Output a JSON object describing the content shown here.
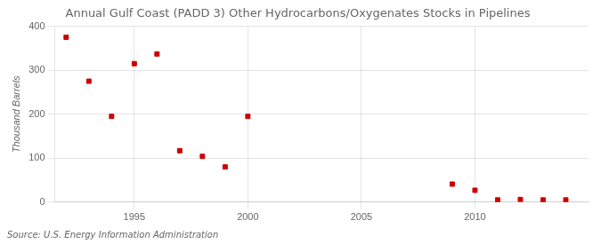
{
  "chart_data": {
    "type": "scatter",
    "title": "Annual Gulf Coast (PADD 3) Other Hydrocarbons/Oxygenates Stocks in Pipelines",
    "ylabel": "Thousand Barrels",
    "annotation": "Source: U.S. Energy Information Administration",
    "x": [
      1992,
      1993,
      1994,
      1995,
      1996,
      1997,
      1998,
      1999,
      2000,
      2009,
      2010,
      2011,
      2012,
      2013,
      2014
    ],
    "values": [
      375,
      275,
      195,
      315,
      337,
      117,
      104,
      80,
      195,
      41,
      27,
      5,
      6,
      5,
      5
    ],
    "color": "#cc0000",
    "marker": "square",
    "xlim": [
      1991.5,
      2015
    ],
    "ylim": [
      0,
      400
    ],
    "xticks": [
      1995,
      2000,
      2005,
      2010
    ],
    "yticks": [
      0,
      100,
      200,
      300,
      400
    ],
    "grid": true
  }
}
